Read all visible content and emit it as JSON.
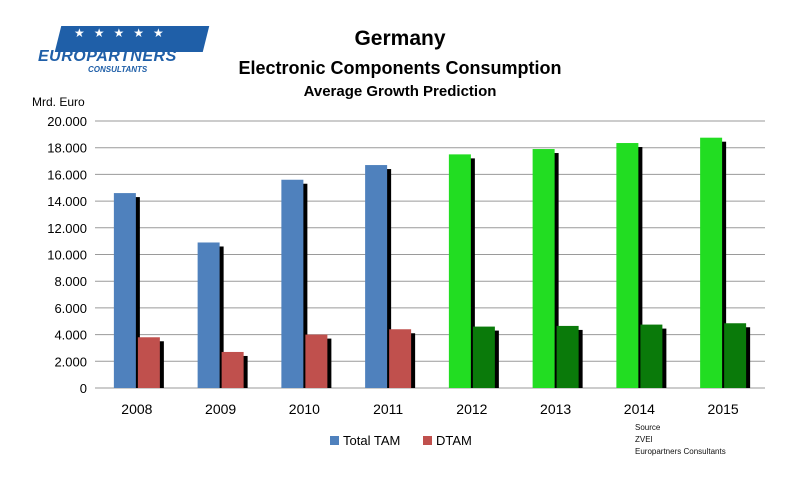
{
  "logo": {
    "name": "EUROPARTNERS",
    "sub": "CONSULTANTS"
  },
  "source": {
    "heading": "Source",
    "lines": [
      "ZVEI",
      "Europartners Consultants"
    ]
  },
  "chart_data": {
    "type": "bar",
    "title": "Germany",
    "subtitle": "Electronic Components Consumption",
    "subtitle2": "Average Growth Prediction",
    "ylabel": "Mrd. Euro",
    "xlabel": "",
    "ylim": [
      0,
      20000
    ],
    "ytick_step": 2000,
    "yticks": [
      "0",
      "2.000",
      "4.000",
      "6.000",
      "8.000",
      "10.000",
      "12.000",
      "14.000",
      "16.000",
      "18.000",
      "20.000"
    ],
    "grid": true,
    "legend_position": "bottom-center",
    "categories": [
      "2008",
      "2009",
      "2010",
      "2011",
      "2012",
      "2013",
      "2014",
      "2015"
    ],
    "series": [
      {
        "name": "Total TAM",
        "color": "#4f81bd",
        "forecast_color": "#22dd22",
        "values": [
          14600,
          10900,
          15600,
          16700,
          17500,
          17900,
          18350,
          18750
        ]
      },
      {
        "name": "DTAM",
        "color": "#c0504d",
        "forecast_color": "#0a7a0a",
        "values": [
          3800,
          2700,
          4000,
          4400,
          4600,
          4650,
          4750,
          4850
        ]
      }
    ],
    "forecast_from_category": "2012"
  }
}
